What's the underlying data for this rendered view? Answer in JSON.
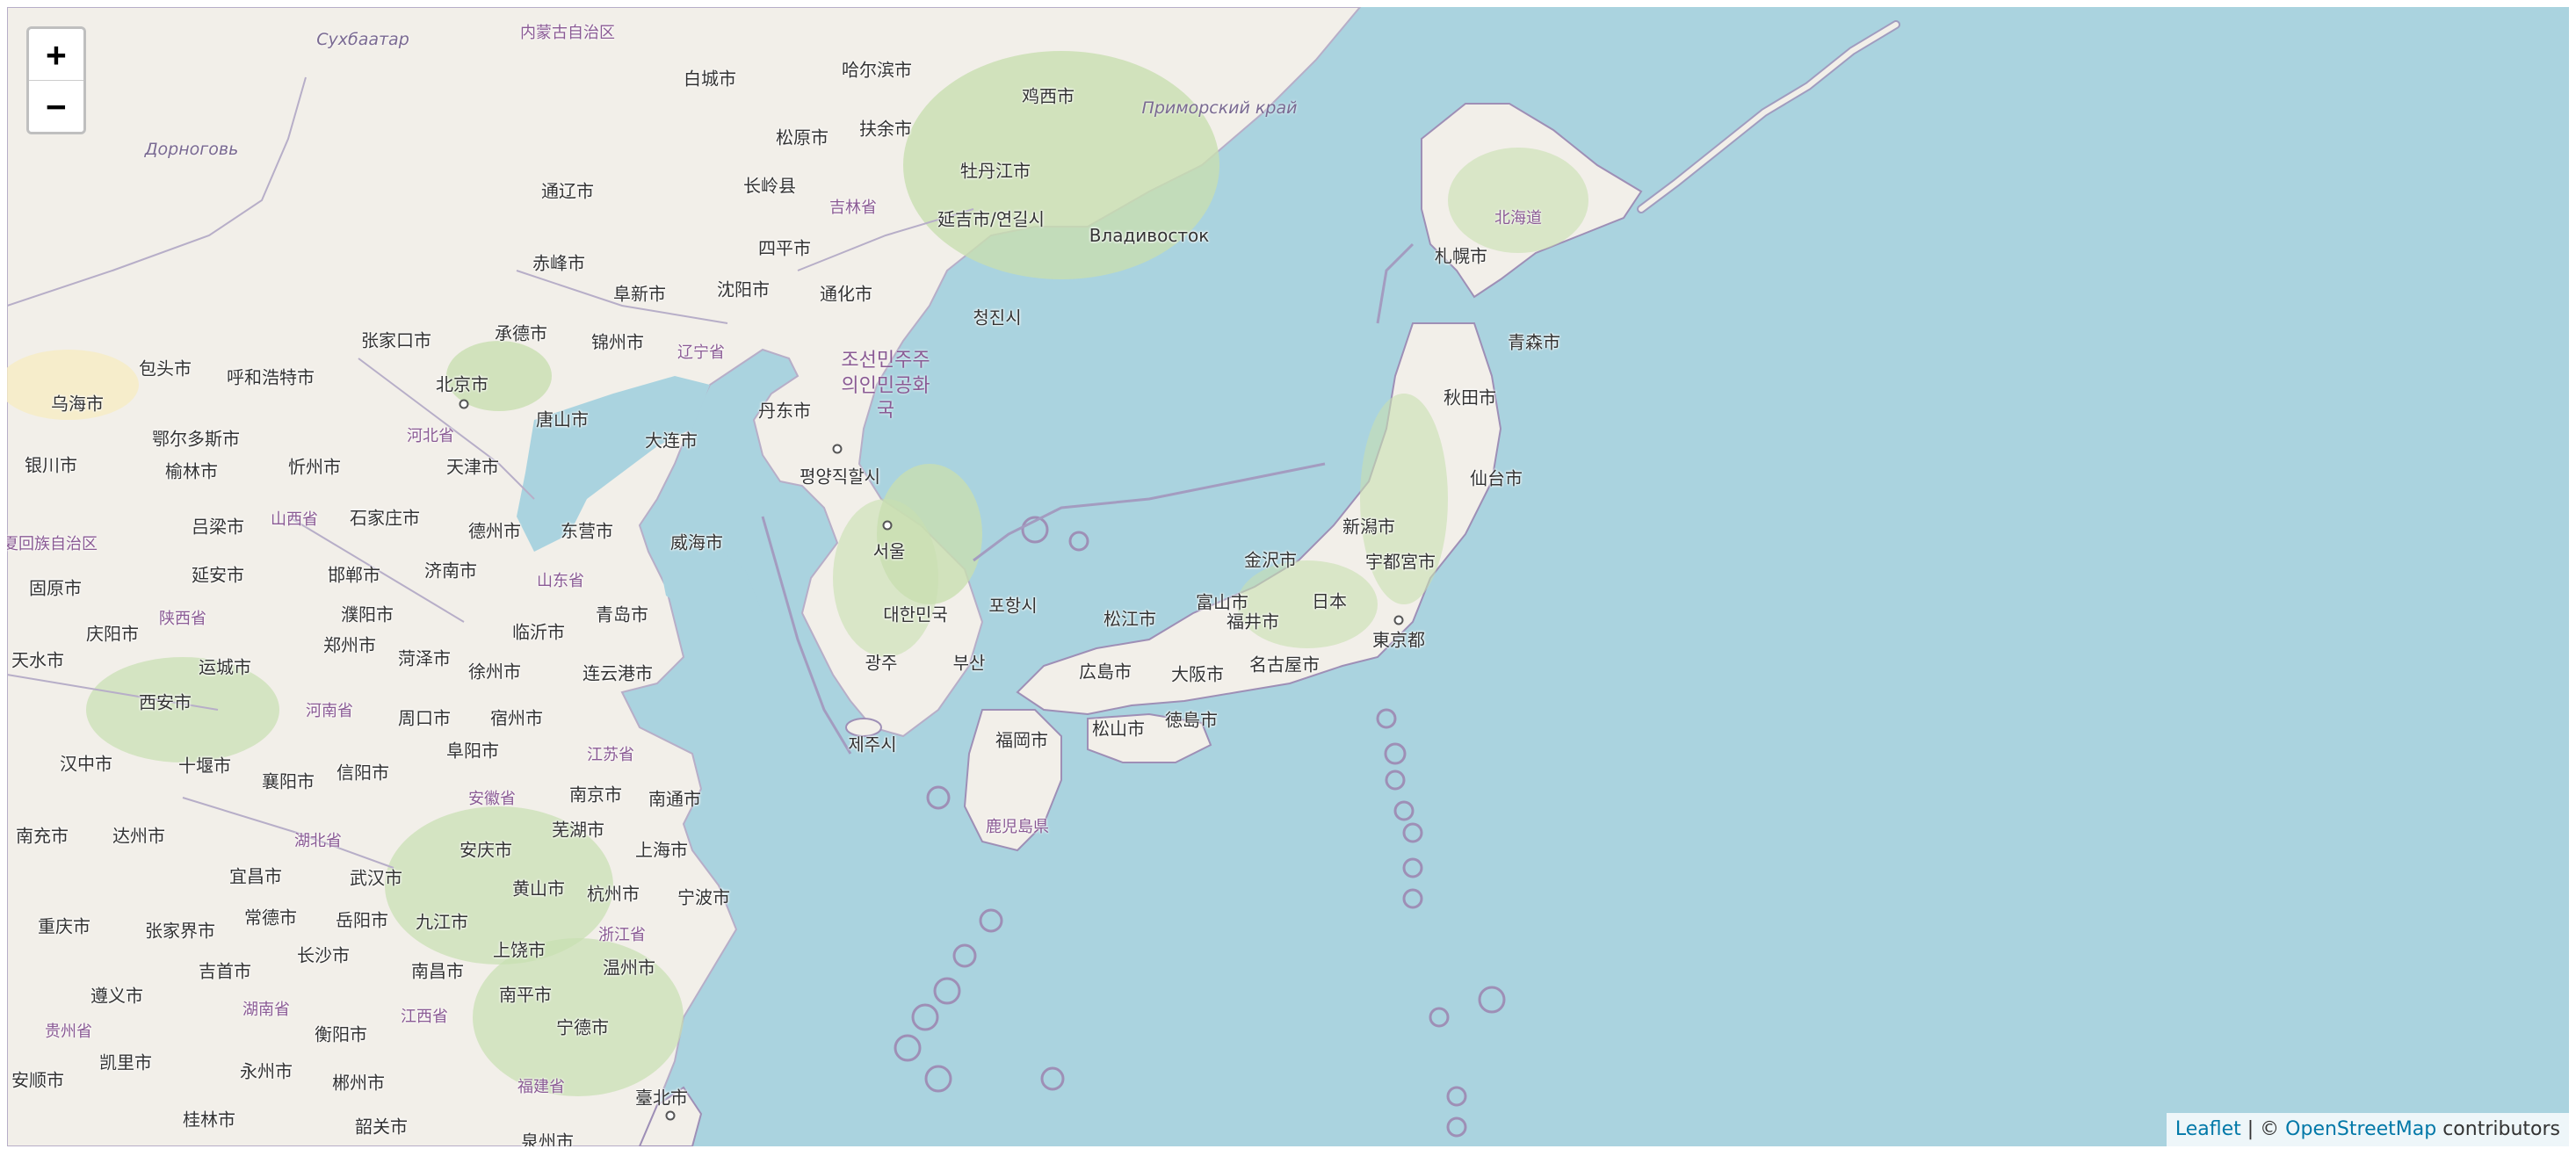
{
  "map": {
    "zoom_in_label": "+",
    "zoom_out_label": "−",
    "colors": {
      "water": "#aad3df",
      "land": "#f2efe9",
      "forest": "#c8dfb0",
      "border": "#9e8fb6"
    },
    "attribution": {
      "leaflet": "Leaflet",
      "sep": " | © ",
      "osm": "OpenStreetMap",
      "suffix": " contributors"
    }
  },
  "labels": {
    "city": [
      "白城市",
      "哈尔滨市",
      "鸡西市",
      "松原市",
      "扶余市",
      "牡丹江市",
      "长岭县",
      "延吉市/연길시",
      "四平市",
      "通化市",
      "阜新市",
      "沈阳市",
      "赤峰市",
      "通辽市",
      "承德市",
      "锦州市",
      "张家口市",
      "北京市",
      "唐山市",
      "丹东市",
      "大连市",
      "天津市",
      "石家庄市",
      "德州市",
      "东营市",
      "威海市",
      "济南市",
      "青岛市",
      "邯郸市",
      "濮阳市",
      "临沂市",
      "郑州市",
      "菏泽市",
      "徐州市",
      "连云港市",
      "周口市",
      "宿州市",
      "阜阳市",
      "西安市",
      "运城市",
      "延安市",
      "吕梁市",
      "榆林市",
      "忻州市",
      "鄂尔多斯市",
      "包头市",
      "呼和浩特市",
      "乌海市",
      "银川市",
      "固原市",
      "庆阳市",
      "天水市",
      "汉中市",
      "十堰市",
      "襄阳市",
      "信阳市",
      "南京市",
      "南通市",
      "芜湖市",
      "安庆市",
      "上海市",
      "黄山市",
      "杭州市",
      "宁波市",
      "南充市",
      "达州市",
      "重庆市",
      "宜昌市",
      "武汉市",
      "常德市",
      "岳阳市",
      "九江市",
      "张家界市",
      "长沙市",
      "上饶市",
      "温州市",
      "吉首市",
      "南昌市",
      "南平市",
      "遵义市",
      "凯里市",
      "衡阳市",
      "宁德市",
      "安顺市",
      "永州市",
      "郴州市",
      "桂林市",
      "韶关市",
      "泉州市",
      "臺北市",
      "평양직할시",
      "서울",
      "대한민국",
      "포항시",
      "광주",
      "부산",
      "제주시",
      "청진시",
      "Владивосток",
      "札幌市",
      "青森市",
      "秋田市",
      "仙台市",
      "新潟市",
      "金沢市",
      "宇都宮市",
      "日本",
      "富山市",
      "福井市",
      "東京都",
      "松江市",
      "広島市",
      "大阪市",
      "名古屋市",
      "福岡市",
      "松山市",
      "徳島市"
    ],
    "region": [
      "内蒙古自治区",
      "吉林省",
      "辽宁省",
      "河北省",
      "山西省",
      "山东省",
      "陕西省",
      "河南省",
      "江苏省",
      "安徽省",
      "湖北省",
      "浙江省",
      "江西省",
      "湖南省",
      "贵州省",
      "福建省",
      "宁夏回族自治区",
      "北海道",
      "鹿児島県"
    ],
    "russia": [
      "Сухбаатар",
      "Дорноговь",
      "Приморский край"
    ],
    "korea_name": "조선민주주\n의인민공화\n국"
  }
}
